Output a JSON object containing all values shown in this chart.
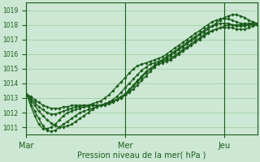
{
  "xlabel": "Pression niveau de la mer( hPa )",
  "xtick_labels": [
    "Mar",
    "Mer",
    "Jeu"
  ],
  "xtick_positions": [
    0,
    24,
    48
  ],
  "n_points": 57,
  "xlim": [
    0,
    56
  ],
  "ylim": [
    1010.5,
    1019.5
  ],
  "yticks": [
    1011,
    1012,
    1013,
    1014,
    1015,
    1016,
    1017,
    1018,
    1019
  ],
  "bg_color": "#cce8d4",
  "grid_color": "#99cc99",
  "line_color": "#1a5c1a",
  "marker": "D",
  "markersize": 1.8,
  "linewidth": 0.9,
  "series": [
    [
      1013.3,
      1012.9,
      1012.5,
      1012.1,
      1011.8,
      1011.5,
      1011.3,
      1011.1,
      1011.0,
      1011.0,
      1011.1,
      1011.2,
      1011.4,
      1011.6,
      1011.8,
      1012.0,
      1012.2,
      1012.4,
      1012.5,
      1012.6,
      1012.7,
      1012.8,
      1012.9,
      1013.0,
      1013.2,
      1013.4,
      1013.6,
      1013.9,
      1014.2,
      1014.5,
      1014.8,
      1015.1,
      1015.4,
      1015.6,
      1015.8,
      1016.0,
      1016.2,
      1016.4,
      1016.6,
      1016.8,
      1017.0,
      1017.2,
      1017.4,
      1017.6,
      1017.8,
      1017.9,
      1018.0,
      1018.1,
      1018.1,
      1018.1,
      1018.0,
      1017.9,
      1017.9,
      1017.9,
      1018.0,
      1018.1,
      1018.1
    ],
    [
      1013.3,
      1012.7,
      1012.1,
      1011.6,
      1011.1,
      1010.8,
      1010.7,
      1010.8,
      1011.0,
      1011.2,
      1011.4,
      1011.6,
      1011.8,
      1012.0,
      1012.1,
      1012.2,
      1012.3,
      1012.4,
      1012.5,
      1012.6,
      1012.7,
      1012.8,
      1012.9,
      1013.0,
      1013.2,
      1013.5,
      1013.8,
      1014.1,
      1014.4,
      1014.7,
      1015.0,
      1015.2,
      1015.4,
      1015.5,
      1015.6,
      1015.7,
      1015.9,
      1016.1,
      1016.3,
      1016.5,
      1016.7,
      1016.9,
      1017.1,
      1017.3,
      1017.5,
      1017.6,
      1017.7,
      1017.8,
      1017.9,
      1018.0,
      1018.0,
      1018.0,
      1018.0,
      1018.0,
      1018.0,
      1018.0,
      1018.0
    ],
    [
      1013.3,
      1012.5,
      1011.8,
      1011.2,
      1010.9,
      1010.9,
      1011.0,
      1011.2,
      1011.5,
      1011.8,
      1012.0,
      1012.1,
      1012.2,
      1012.3,
      1012.4,
      1012.4,
      1012.5,
      1012.5,
      1012.5,
      1012.5,
      1012.6,
      1012.7,
      1012.9,
      1013.1,
      1013.3,
      1013.6,
      1013.9,
      1014.2,
      1014.5,
      1014.8,
      1015.0,
      1015.2,
      1015.3,
      1015.4,
      1015.5,
      1015.6,
      1015.8,
      1016.0,
      1016.2,
      1016.4,
      1016.6,
      1016.8,
      1017.0,
      1017.2,
      1017.4,
      1017.6,
      1017.7,
      1017.8,
      1017.8,
      1017.8,
      1017.8,
      1017.7,
      1017.7,
      1017.7,
      1017.8,
      1017.9,
      1018.0
    ],
    [
      1013.3,
      1013.0,
      1012.7,
      1012.4,
      1012.2,
      1012.0,
      1011.9,
      1011.9,
      1012.0,
      1012.1,
      1012.2,
      1012.3,
      1012.4,
      1012.4,
      1012.5,
      1012.5,
      1012.5,
      1012.5,
      1012.5,
      1012.6,
      1012.7,
      1012.9,
      1013.1,
      1013.4,
      1013.7,
      1014.0,
      1014.3,
      1014.6,
      1014.9,
      1015.1,
      1015.3,
      1015.4,
      1015.5,
      1015.6,
      1015.7,
      1015.9,
      1016.1,
      1016.3,
      1016.5,
      1016.7,
      1016.9,
      1017.1,
      1017.3,
      1017.5,
      1017.7,
      1017.9,
      1018.1,
      1018.3,
      1018.5,
      1018.6,
      1018.7,
      1018.7,
      1018.6,
      1018.5,
      1018.3,
      1018.2,
      1018.1
    ],
    [
      1013.3,
      1013.1,
      1012.9,
      1012.7,
      1012.5,
      1012.4,
      1012.3,
      1012.3,
      1012.3,
      1012.4,
      1012.4,
      1012.5,
      1012.5,
      1012.5,
      1012.5,
      1012.5,
      1012.6,
      1012.7,
      1012.8,
      1013.0,
      1013.2,
      1013.5,
      1013.8,
      1014.1,
      1014.4,
      1014.7,
      1015.0,
      1015.2,
      1015.3,
      1015.4,
      1015.5,
      1015.6,
      1015.7,
      1015.8,
      1016.0,
      1016.2,
      1016.4,
      1016.6,
      1016.8,
      1017.0,
      1017.2,
      1017.4,
      1017.6,
      1017.8,
      1018.0,
      1018.2,
      1018.3,
      1018.4,
      1018.4,
      1018.4,
      1018.3,
      1018.2,
      1018.1,
      1018.1,
      1018.1,
      1018.1,
      1018.1
    ]
  ]
}
